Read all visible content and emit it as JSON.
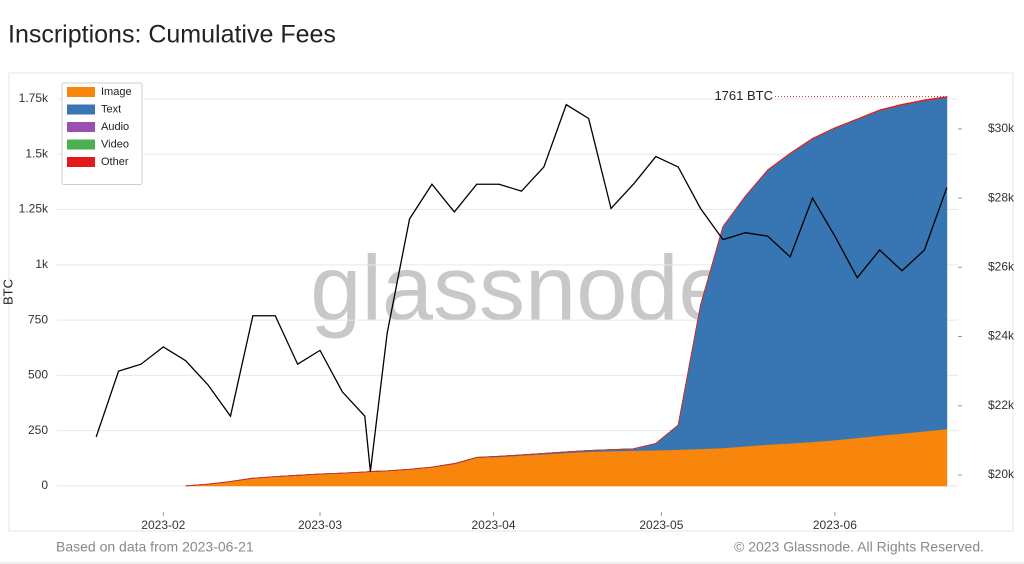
{
  "chart_data": {
    "type": "area",
    "title": "Inscriptions: Cumulative Fees",
    "ylabel": "BTC",
    "watermark": "glassnode",
    "annotation": "1761 BTC",
    "footer_left": "Based on data from 2023-06-21",
    "footer_right": "© 2023 Glassnode. All Rights Reserved.",
    "grid": true,
    "legend": "upper left",
    "xlim": [
      "2023-01-13",
      "2023-06-23"
    ],
    "xticks": [
      {
        "value": "2023-02-01",
        "label": "2023-02"
      },
      {
        "value": "2023-03-01",
        "label": "2023-03"
      },
      {
        "value": "2023-04-01",
        "label": "2023-04"
      },
      {
        "value": "2023-05-01",
        "label": "2023-05"
      },
      {
        "value": "2023-06-01",
        "label": "2023-06"
      }
    ],
    "ylim": [
      -118,
      1845
    ],
    "yticks": [
      0,
      250,
      500,
      750,
      {
        "value": 1000,
        "label": "1k"
      },
      {
        "value": 1250,
        "label": "1.25k"
      },
      {
        "value": 1500,
        "label": "1.5k"
      },
      {
        "value": 1750,
        "label": "1.75k"
      }
    ],
    "y2lim": [
      18930,
      31470
    ],
    "y2ticks": [
      {
        "value": 20000,
        "label": "$20k"
      },
      {
        "value": 22000,
        "label": "$22k"
      },
      {
        "value": 24000,
        "label": "$24k"
      },
      {
        "value": 26000,
        "label": "$26k"
      },
      {
        "value": 28000,
        "label": "$28k"
      },
      {
        "value": 30000,
        "label": "$30k"
      }
    ],
    "x": [
      "2023-01-20",
      "2023-01-24",
      "2023-01-28",
      "2023-02-01",
      "2023-02-05",
      "2023-02-09",
      "2023-02-13",
      "2023-02-17",
      "2023-02-21",
      "2023-02-25",
      "2023-03-01",
      "2023-03-05",
      "2023-03-09",
      "2023-03-10",
      "2023-03-13",
      "2023-03-17",
      "2023-03-21",
      "2023-03-25",
      "2023-03-29",
      "2023-04-02",
      "2023-04-06",
      "2023-04-10",
      "2023-04-14",
      "2023-04-18",
      "2023-04-22",
      "2023-04-26",
      "2023-04-30",
      "2023-05-04",
      "2023-05-08",
      "2023-05-12",
      "2023-05-16",
      "2023-05-20",
      "2023-05-24",
      "2023-05-28",
      "2023-06-01",
      "2023-06-05",
      "2023-06-09",
      "2023-06-13",
      "2023-06-17",
      "2023-06-21"
    ],
    "series": [
      {
        "name": "Image",
        "color": "#f8860d",
        "values": [
          null,
          null,
          null,
          null,
          0,
          8,
          20,
          35,
          42,
          48,
          54,
          58,
          63,
          65,
          68,
          75,
          85,
          100,
          128,
          132,
          138,
          144,
          150,
          155,
          158,
          160,
          162,
          165,
          168,
          172,
          180,
          188,
          193,
          200,
          208,
          218,
          228,
          238,
          248,
          258
        ]
      },
      {
        "name": "Text",
        "color": "#3776b2",
        "values": [
          null,
          null,
          null,
          null,
          0,
          0,
          0,
          0,
          0,
          0,
          0,
          0,
          0,
          0,
          0,
          0,
          0,
          1,
          1,
          2,
          2,
          3,
          4,
          5,
          6,
          8,
          30,
          110,
          650,
          1000,
          1130,
          1240,
          1310,
          1370,
          1410,
          1440,
          1470,
          1485,
          1495,
          1500
        ]
      },
      {
        "name": "Audio",
        "color": "#9b4fb0",
        "values": [
          null,
          null,
          null,
          null,
          0,
          0,
          0,
          0,
          0,
          0,
          0,
          0,
          0,
          0,
          0,
          0,
          0,
          0,
          0,
          0,
          0,
          0,
          0,
          0,
          0,
          0,
          0,
          0,
          0,
          0,
          0,
          0,
          0,
          0,
          0,
          0,
          0,
          0,
          0,
          0
        ]
      },
      {
        "name": "Video",
        "color": "#4caf50",
        "values": [
          null,
          null,
          null,
          null,
          0,
          0,
          0,
          0,
          0,
          0,
          0,
          0,
          0,
          0,
          0,
          0,
          0,
          0,
          0,
          0,
          0,
          0,
          0,
          0,
          0,
          0,
          0,
          0,
          0,
          0,
          0,
          0,
          0,
          0,
          0,
          0,
          0,
          0,
          0,
          0
        ]
      },
      {
        "name": "Other",
        "color": "#e31a1c",
        "values": [
          null,
          null,
          null,
          null,
          0,
          0,
          0,
          0,
          0,
          0,
          0,
          0,
          0,
          0,
          0,
          0,
          0,
          0,
          0,
          0,
          0,
          0,
          0,
          0,
          0,
          0,
          0,
          0,
          1,
          1,
          1,
          2,
          2,
          2,
          2,
          2,
          3,
          3,
          3,
          3
        ]
      },
      {
        "type": "line",
        "axis": "y2",
        "color": "#000000",
        "values": [
          21100,
          23000,
          23200,
          23700,
          23300,
          22600,
          21700,
          24600,
          24600,
          23200,
          23600,
          22400,
          21700,
          20100,
          24100,
          27400,
          28400,
          27600,
          28400,
          28400,
          28200,
          28900,
          30700,
          30300,
          27700,
          28400,
          29200,
          28900,
          27700,
          26800,
          27000,
          26900,
          26300,
          28000,
          26900,
          25700,
          26500,
          25900,
          26500,
          28300
        ]
      }
    ]
  }
}
